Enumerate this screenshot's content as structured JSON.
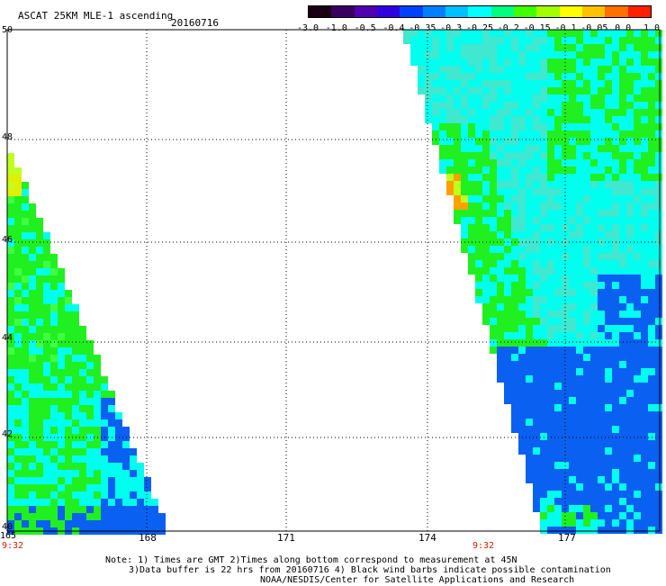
{
  "title": "ASCAT 25KM MLE-1 ascending",
  "date": "20160716",
  "colorbar": {
    "labels": [
      "-3.0",
      "-1.0",
      "-0.5",
      "-0.4",
      "-0.35",
      "-0.3",
      "-0.25",
      "-0.2",
      "-0.15",
      "-0.1",
      "-0.05",
      "0.0",
      "1.0"
    ],
    "colors": [
      "#1a0010",
      "#3a0060",
      "#5000b0",
      "#3000e0",
      "#0040ff",
      "#0080ff",
      "#00c0ff",
      "#00ffff",
      "#00ff80",
      "#40ff00",
      "#a0ff00",
      "#ffff00",
      "#ffc000",
      "#ff7000",
      "#ff2000"
    ]
  },
  "axes": {
    "lat_labels": [
      "50",
      "48",
      "46",
      "44",
      "42",
      "40"
    ],
    "lon_labels": [
      "165",
      "168",
      "171",
      "174",
      "177"
    ]
  },
  "times": [
    "9:32",
    "9:32"
  ],
  "notes": {
    "line1": "Note: 1) Times are GMT 2)Times along bottom correspond to measurement at 45N",
    "line2": "3)Data buffer is 22 hrs from 20160716 4) Black wind barbs indicate possible contamination",
    "line3": "NOAA/NESDIS/Center for Satellite Applications and Research"
  },
  "palette": {
    "blue": "#0a60f0",
    "cyan": "#00ffee",
    "green": "#20f020",
    "yellow": "#c0ff20",
    "orange": "#ffa000"
  }
}
